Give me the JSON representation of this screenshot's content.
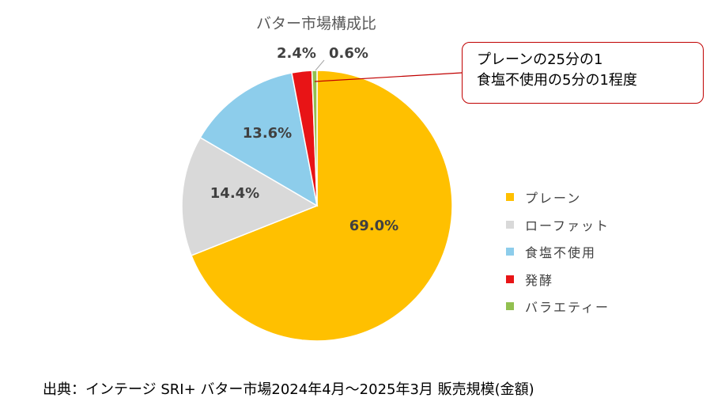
{
  "chart_data": {
    "type": "pie",
    "title": "バター市場構成比",
    "slices": [
      {
        "name": "プレーン",
        "value": 69.0,
        "label": "69.0%",
        "color": "#FFC000"
      },
      {
        "name": "ローファット",
        "value": 14.4,
        "label": "14.4%",
        "color": "#D9D9D9"
      },
      {
        "name": "食塩不使用",
        "value": 13.6,
        "label": "13.6%",
        "color": "#8DCDEB"
      },
      {
        "name": "発酵",
        "value": 2.4,
        "label": "2.4%",
        "color": "#E81416"
      },
      {
        "name": "バラエティー",
        "value": 0.6,
        "label": "0.6%",
        "color": "#92C050"
      }
    ],
    "legend_position": "right"
  },
  "annotation": {
    "line1": "プレーンの25分の1",
    "line2": "食塩不使用の5分の1程度"
  },
  "source": "出典：インテージ SRI+ バター市場2024年4月～2025年3月 販売規模(金額)"
}
